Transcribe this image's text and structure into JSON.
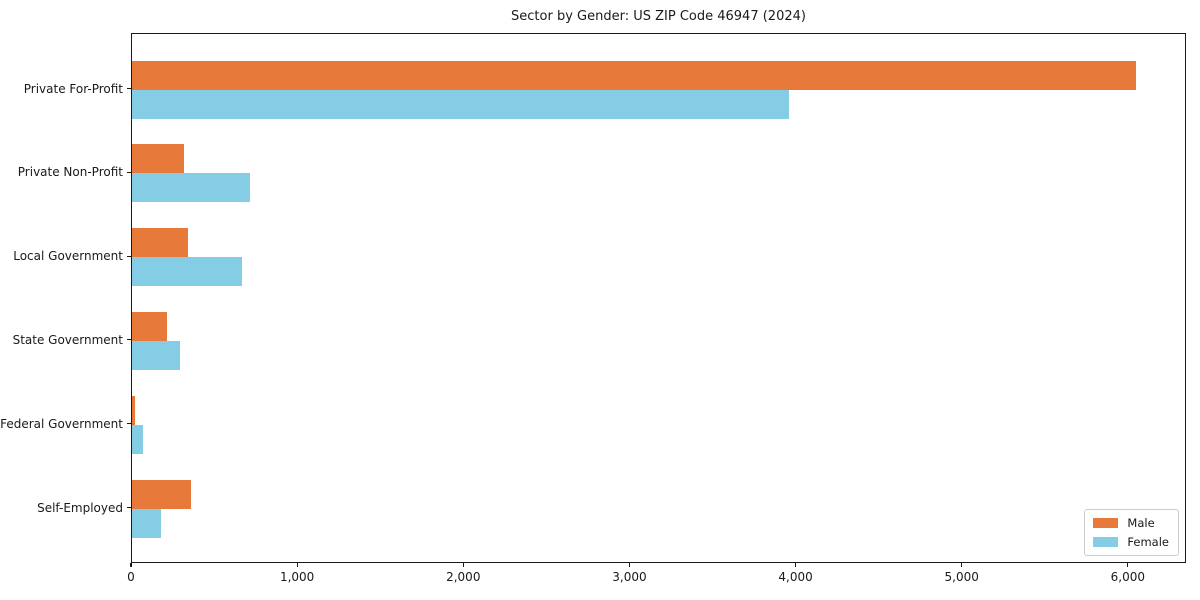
{
  "chart_data": {
    "type": "bar",
    "orientation": "horizontal",
    "title": "Sector by Gender: US ZIP Code 46947 (2024)",
    "categories": [
      "Private For-Profit",
      "Private Non-Profit",
      "Local Government",
      "State Government",
      "Federal Government",
      "Self-Employed"
    ],
    "series": [
      {
        "name": "Male",
        "color": "#e7793b",
        "values": [
          6045,
          315,
          335,
          210,
          20,
          355
        ]
      },
      {
        "name": "Female",
        "color": "#85cde5",
        "values": [
          3955,
          710,
          660,
          290,
          65,
          175
        ]
      }
    ],
    "xlabel": "",
    "ylabel": "",
    "xlim": [
      0,
      6350
    ],
    "xticks": [
      0,
      1000,
      2000,
      3000,
      4000,
      5000,
      6000
    ],
    "xtick_labels": [
      "0",
      "1,000",
      "2,000",
      "3,000",
      "4,000",
      "5,000",
      "6,000"
    ],
    "legend": {
      "position": "lower right",
      "labels": [
        "Male",
        "Female"
      ]
    },
    "grid": false,
    "background": "#ffffff",
    "text_color": "#1a1a1a"
  }
}
